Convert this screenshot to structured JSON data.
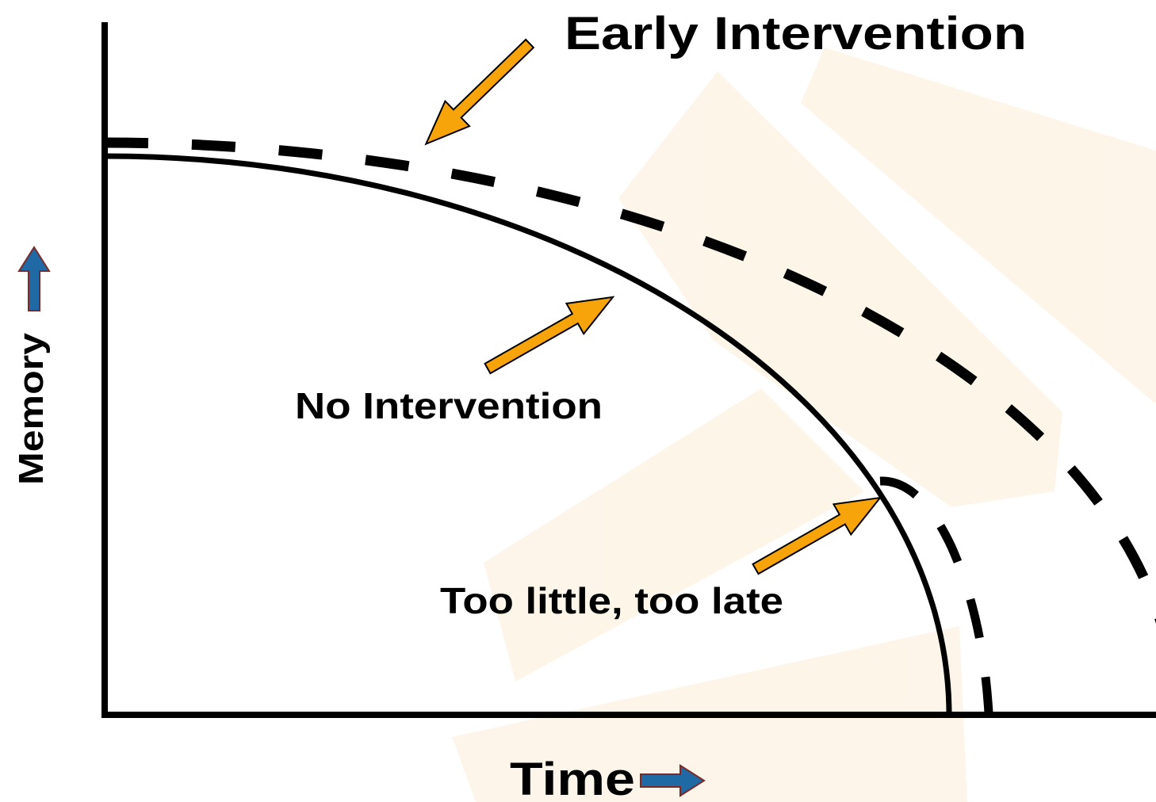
{
  "labels": {
    "early": "Early Intervention",
    "none": "No Intervention",
    "late": "Too little, too late"
  },
  "axes": {
    "x": "Time",
    "y": "Memory"
  }
}
